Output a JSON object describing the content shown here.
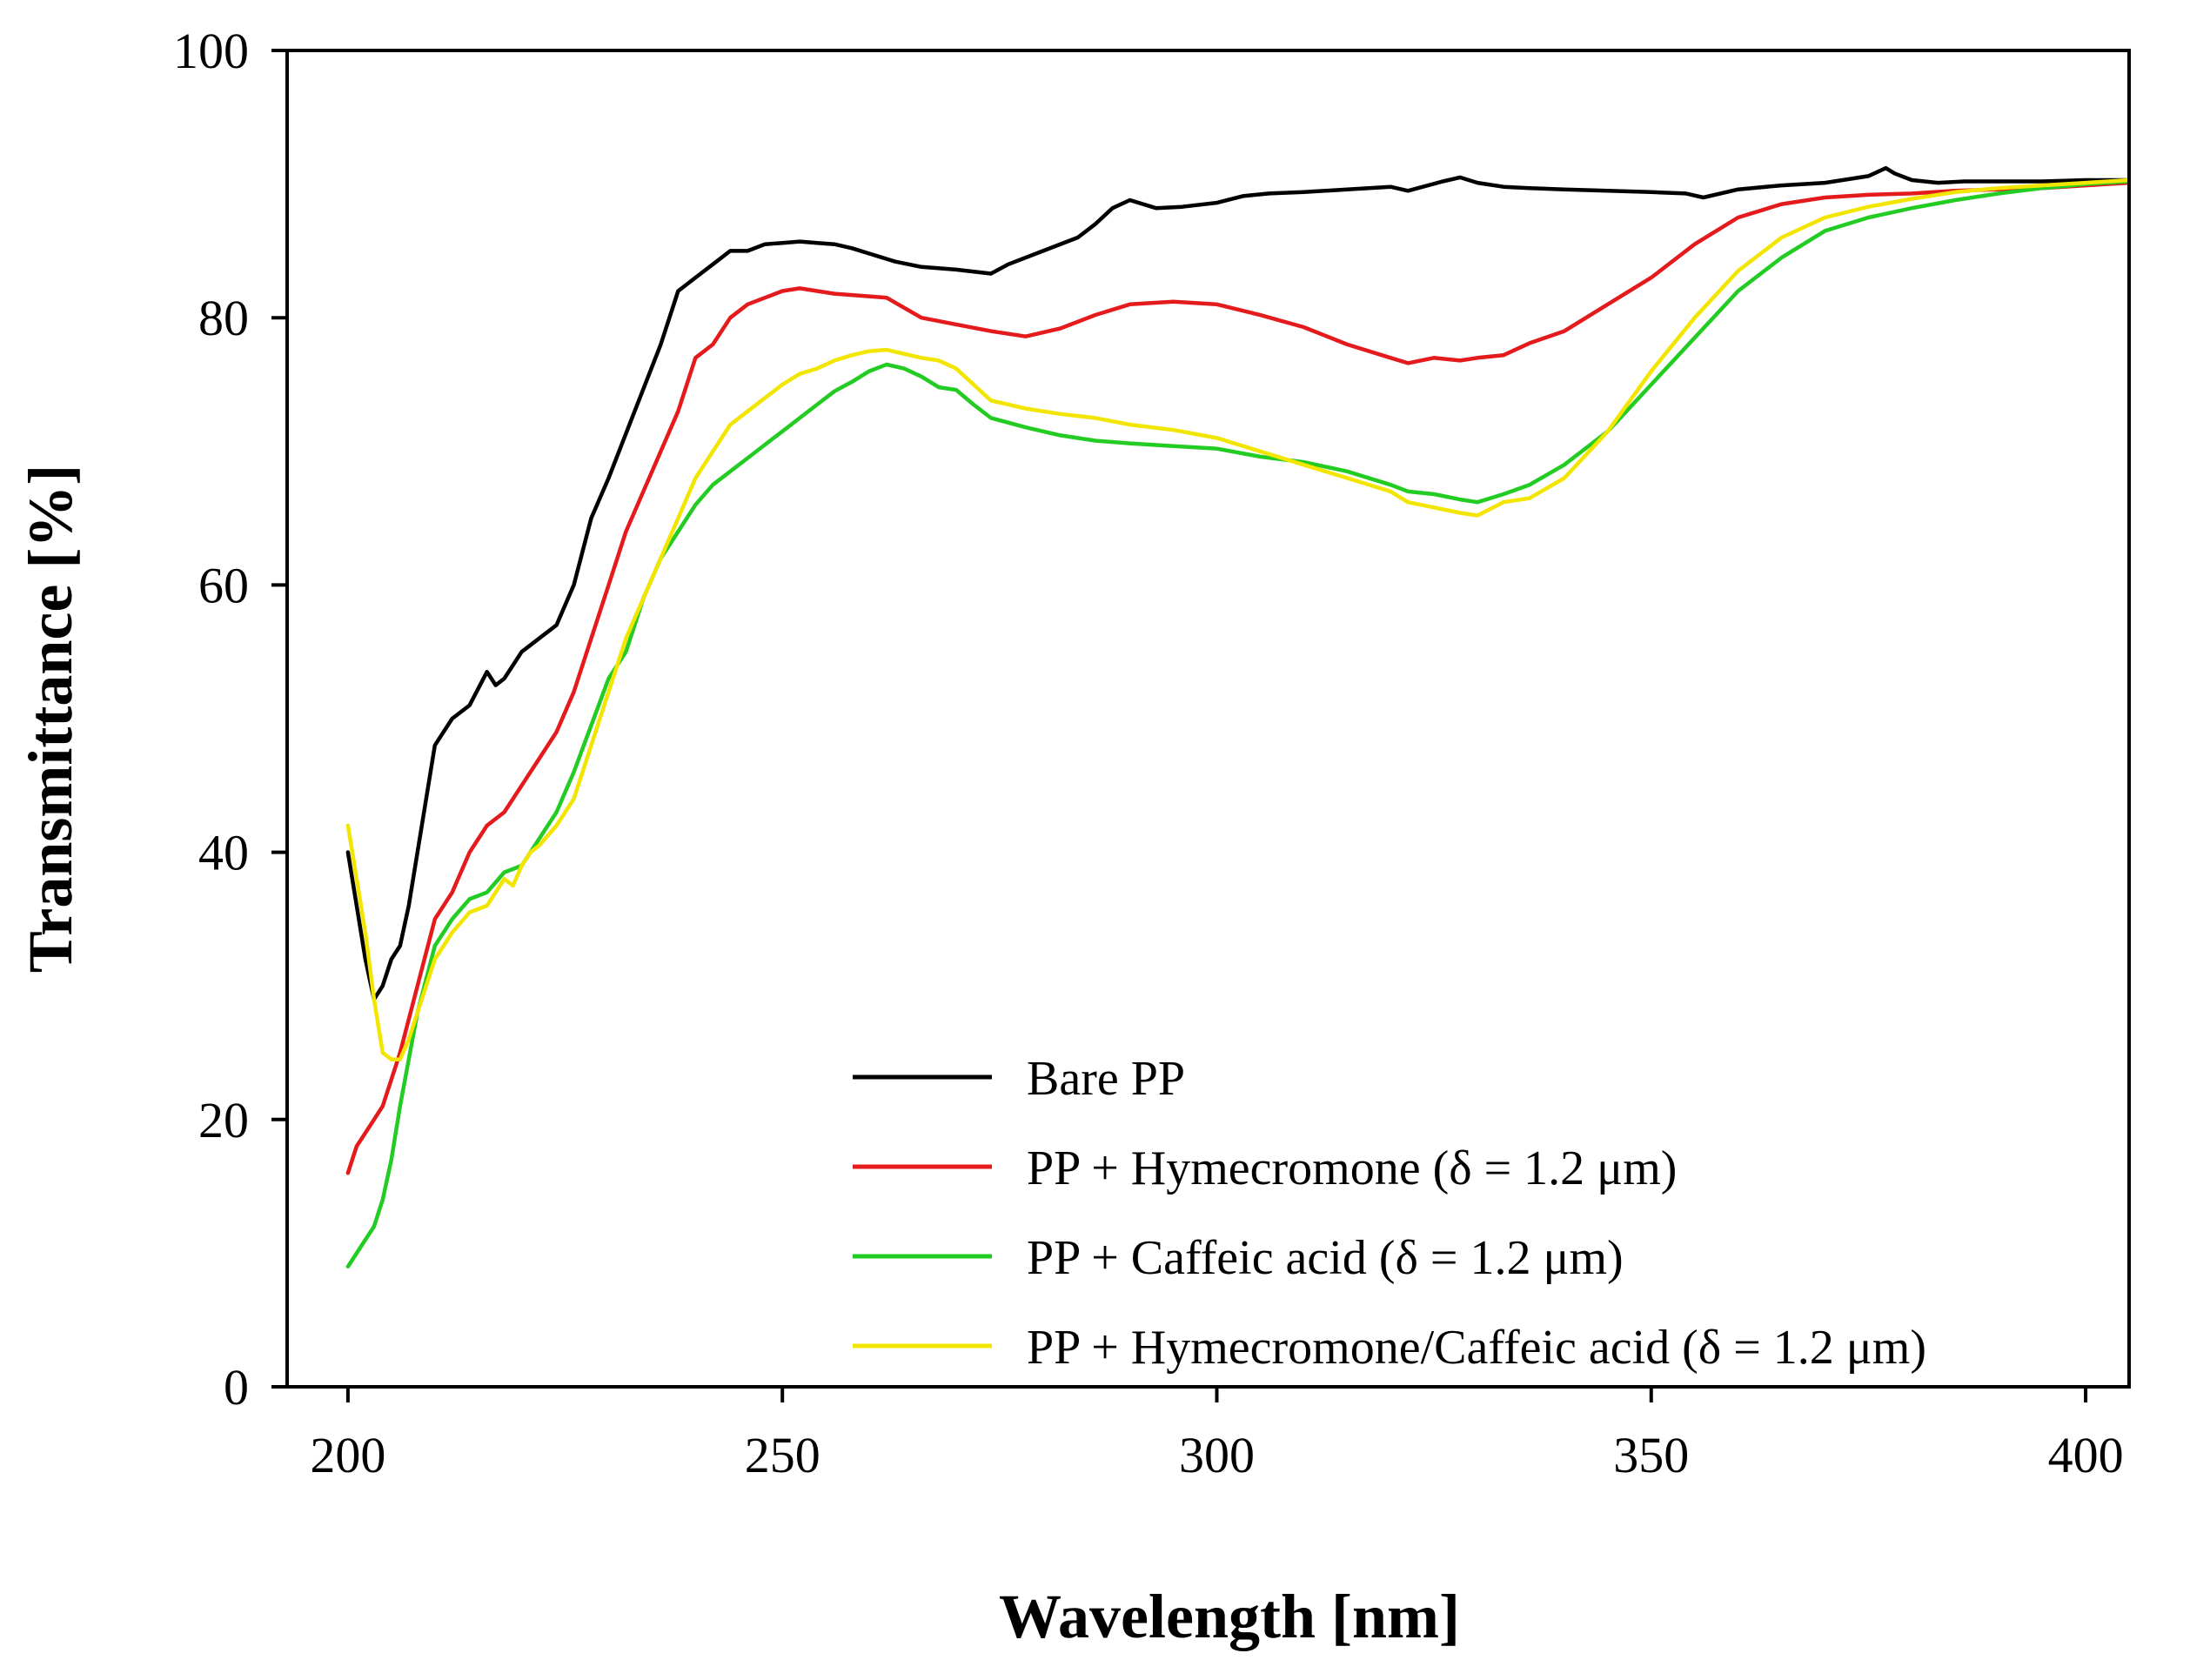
{
  "chart_data": {
    "type": "line",
    "title": "",
    "xlabel": "Wavelength [nm]",
    "ylabel": "Transmittance [%]",
    "xlim": [
      193,
      405
    ],
    "ylim": [
      0,
      100
    ],
    "xticks": [
      200,
      250,
      300,
      350,
      400
    ],
    "yticks": [
      0,
      20,
      40,
      60,
      80,
      100
    ],
    "grid": false,
    "legend_position": "bottom-right",
    "series": [
      {
        "name": "Bare PP",
        "color": "#000000",
        "x": [
          200,
          201,
          202,
          203,
          204,
          205,
          206,
          207,
          208,
          209,
          210,
          212,
          214,
          216,
          217,
          218,
          220,
          222,
          224,
          226,
          228,
          230,
          233,
          236,
          238,
          240,
          242,
          244,
          246,
          248,
          250,
          252,
          254,
          256,
          258,
          260,
          263,
          266,
          270,
          274,
          276,
          280,
          284,
          286,
          288,
          290,
          293,
          296,
          300,
          303,
          306,
          310,
          315,
          320,
          322,
          326,
          328,
          330,
          333,
          336,
          340,
          345,
          350,
          354,
          356,
          360,
          365,
          370,
          375,
          377,
          378,
          380,
          383,
          386,
          390,
          395,
          400,
          405
        ],
        "values": [
          40,
          36,
          32,
          29,
          30,
          32,
          33,
          36,
          40,
          44,
          48,
          50,
          51,
          53.5,
          52.5,
          53,
          55,
          56,
          57,
          60,
          65,
          68,
          73,
          78,
          82,
          83,
          84,
          85,
          85,
          85.5,
          85.6,
          85.7,
          85.6,
          85.5,
          85.2,
          84.8,
          84.2,
          83.8,
          83.6,
          83.3,
          84,
          85,
          86,
          87,
          88.2,
          88.8,
          88.2,
          88.3,
          88.6,
          89.1,
          89.3,
          89.4,
          89.6,
          89.8,
          89.5,
          90.2,
          90.5,
          90.1,
          89.8,
          89.7,
          89.6,
          89.5,
          89.4,
          89.3,
          89,
          89.6,
          89.9,
          90.1,
          90.6,
          91.2,
          90.8,
          90.3,
          90.1,
          90.2,
          90.2,
          90.2,
          90.3,
          90.3
        ]
      },
      {
        "name": "PP + Hymecromone (δ = 1.2 μm)",
        "color": "#e41a1c",
        "x": [
          200,
          201,
          202,
          203,
          204,
          206,
          208,
          210,
          212,
          214,
          216,
          218,
          220,
          222,
          224,
          226,
          228,
          230,
          232,
          234,
          236,
          238,
          240,
          242,
          244,
          246,
          248,
          250,
          252,
          254,
          256,
          258,
          262,
          266,
          270,
          274,
          278,
          282,
          286,
          290,
          295,
          300,
          305,
          310,
          315,
          320,
          322,
          325,
          328,
          330,
          333,
          336,
          340,
          345,
          350,
          355,
          360,
          365,
          370,
          375,
          380,
          385,
          390,
          395,
          400,
          405
        ],
        "values": [
          16,
          18,
          19,
          20,
          21,
          25,
          30,
          35,
          37,
          40,
          42,
          43,
          45,
          47,
          49,
          52,
          56,
          60,
          64,
          67,
          70,
          73,
          77,
          78,
          80,
          81,
          81.5,
          82,
          82.2,
          82,
          81.8,
          81.7,
          81.5,
          80,
          79.5,
          79,
          78.6,
          79.2,
          80.2,
          81,
          81.2,
          81,
          80.2,
          79.3,
          78,
          77,
          76.6,
          77,
          76.8,
          77,
          77.2,
          78.1,
          79,
          81,
          83,
          85.5,
          87.5,
          88.5,
          89,
          89.2,
          89.3,
          89.5,
          89.6,
          89.7,
          89.9,
          90.1
        ]
      },
      {
        "name": "PP + Caffeic acid (δ = 1.2 μm)",
        "color": "#22cc22",
        "x": [
          200,
          201,
          202,
          203,
          204,
          205,
          206,
          208,
          210,
          212,
          214,
          216,
          218,
          220,
          222,
          224,
          226,
          228,
          230,
          232,
          234,
          236,
          238,
          240,
          242,
          244,
          246,
          248,
          250,
          252,
          254,
          256,
          258,
          260,
          262,
          264,
          266,
          268,
          270,
          272,
          274,
          278,
          282,
          286,
          290,
          295,
          300,
          305,
          310,
          315,
          320,
          322,
          325,
          328,
          330,
          333,
          336,
          340,
          345,
          350,
          355,
          360,
          365,
          370,
          375,
          380,
          385,
          390,
          395,
          400,
          405
        ],
        "values": [
          9,
          10,
          11,
          12,
          14,
          17,
          21,
          28,
          33,
          35,
          36.5,
          37,
          38.5,
          39,
          41,
          43,
          46,
          49.5,
          53,
          55,
          59,
          62,
          64,
          66,
          67.5,
          68.5,
          69.5,
          70.5,
          71.5,
          72.5,
          73.5,
          74.5,
          75.2,
          76,
          76.5,
          76.2,
          75.6,
          74.8,
          74.6,
          73.5,
          72.5,
          71.8,
          71.2,
          70.8,
          70.6,
          70.4,
          70.2,
          69.6,
          69.2,
          68.5,
          67.5,
          67,
          66.8,
          66.4,
          66.2,
          66.8,
          67.5,
          69,
          71.5,
          75,
          78.5,
          82,
          84.5,
          86.5,
          87.5,
          88.2,
          88.8,
          89.3,
          89.7,
          90,
          90.2
        ]
      },
      {
        "name": "PP + Hymecromone/Caffeic acid (δ = 1.2 μm)",
        "color": "#f2e600",
        "x": [
          200,
          201,
          202,
          203,
          204,
          205,
          206,
          207,
          208,
          210,
          212,
          214,
          216,
          218,
          219,
          220,
          221,
          222,
          224,
          226,
          228,
          230,
          232,
          234,
          236,
          238,
          240,
          242,
          244,
          246,
          248,
          250,
          252,
          254,
          256,
          258,
          260,
          262,
          264,
          266,
          268,
          270,
          272,
          274,
          278,
          282,
          286,
          290,
          295,
          300,
          305,
          310,
          315,
          320,
          322,
          325,
          328,
          330,
          333,
          336,
          340,
          345,
          350,
          355,
          360,
          365,
          370,
          375,
          380,
          385,
          390,
          395,
          400,
          405
        ],
        "values": [
          42,
          38,
          34,
          29,
          25,
          24.5,
          24.5,
          26,
          28,
          32,
          34,
          35.5,
          36,
          38,
          37.5,
          39,
          40,
          40.5,
          42,
          44,
          48,
          52,
          56,
          59,
          62,
          65,
          68,
          70,
          72,
          73,
          74,
          75,
          75.8,
          76.2,
          76.8,
          77.2,
          77.5,
          77.6,
          77.3,
          77,
          76.8,
          76.2,
          75,
          73.8,
          73.2,
          72.8,
          72.5,
          72,
          71.6,
          71,
          70,
          69,
          68,
          67,
          66.2,
          65.8,
          65.4,
          65.2,
          66.2,
          66.5,
          68,
          71.5,
          76,
          80,
          83.5,
          86,
          87.5,
          88.3,
          88.9,
          89.4,
          89.7,
          89.9,
          90.1,
          90.3
        ]
      }
    ]
  }
}
